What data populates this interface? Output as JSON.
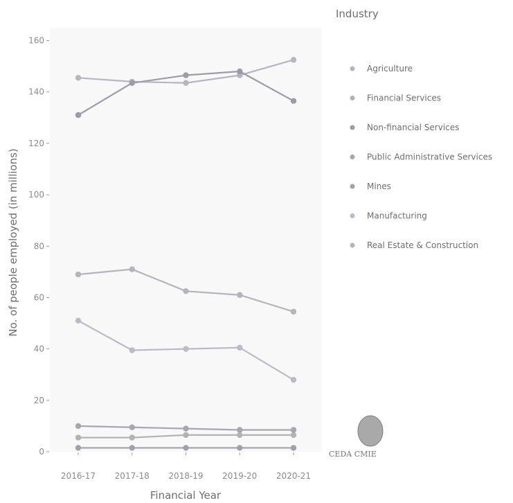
{
  "chart_data": {
    "type": "line",
    "xlabel": "Financial Year",
    "ylabel": "No. of people employed (in millions)",
    "categories": [
      "2016-17",
      "2017-18",
      "2018-19",
      "2019-20",
      "2020-21"
    ],
    "ylim": [
      0,
      165
    ],
    "yticks": [
      0,
      20,
      40,
      60,
      80,
      100,
      120,
      140,
      160
    ],
    "grid": false,
    "legend_title": "Industry",
    "legend_position": "right",
    "series": [
      {
        "name": "Agriculture",
        "color": "#b8b4c4",
        "values": [
          145.5,
          144,
          143.5,
          146.5,
          152.5
        ]
      },
      {
        "name": "Financial Services",
        "color": "#b3b3b3",
        "values": [
          5.5,
          5.5,
          6.5,
          6.5,
          6.5
        ]
      },
      {
        "name": "Non-financial Services",
        "color": "#9d9ba8",
        "values": [
          131,
          143.5,
          146.5,
          148,
          136.5
        ]
      },
      {
        "name": "Public Administrative Services",
        "color": "#a8a6b2",
        "values": [
          10,
          9.5,
          9,
          8.5,
          8.5
        ]
      },
      {
        "name": "Mines",
        "color": "#a39fae",
        "values": [
          1.5,
          1.5,
          1.5,
          1.5,
          1.5
        ]
      },
      {
        "name": "Manufacturing",
        "color": "#bdb9c9",
        "values": [
          51,
          39.5,
          40,
          40.5,
          28
        ]
      },
      {
        "name": "Real Estate & Construction",
        "color": "#b5b3bc",
        "values": [
          69,
          71,
          62.5,
          61,
          54.5
        ]
      }
    ]
  },
  "credit": {
    "text": "CEDA CMIE",
    "logo_icon": "globe-logo-icon"
  }
}
